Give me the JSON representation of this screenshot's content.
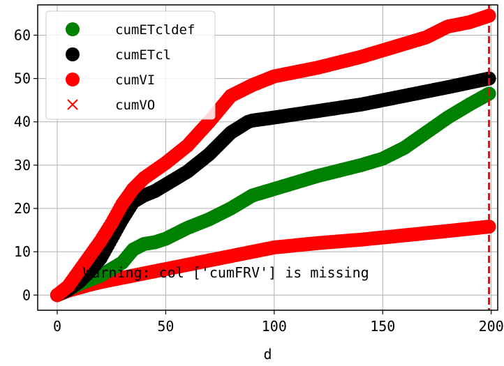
{
  "chart_data": {
    "type": "scatter",
    "xlabel": "d",
    "ylabel": "",
    "title": "",
    "xlim": [
      -9,
      203
    ],
    "ylim": [
      -3.5,
      67
    ],
    "xticks": [
      0,
      50,
      100,
      150,
      200
    ],
    "yticks": [
      0,
      10,
      20,
      30,
      40,
      50,
      60
    ],
    "grid": true,
    "legend_position": "top-left",
    "vline": {
      "x": 199,
      "color": "#ff0000",
      "style": "dashed"
    },
    "annotation": {
      "text": "Warning: col ['cumFRV'] is missing",
      "x": 12,
      "y": 5
    },
    "series": [
      {
        "name": "cumETcldef",
        "color": "#008000",
        "marker": "circle",
        "x": [
          0,
          5,
          10,
          15,
          20,
          25,
          30,
          35,
          40,
          45,
          50,
          60,
          70,
          80,
          90,
          100,
          120,
          140,
          150,
          160,
          170,
          180,
          190,
          199
        ],
        "y": [
          0,
          1.2,
          2.5,
          3.5,
          4.5,
          6,
          7.5,
          10.5,
          11.8,
          12.2,
          13,
          15.5,
          17.5,
          20,
          23,
          24.5,
          27.5,
          30,
          31.5,
          34,
          37.5,
          41,
          44,
          46.5
        ]
      },
      {
        "name": "cumETcl",
        "color": "#000000",
        "marker": "circle",
        "x": [
          0,
          5,
          10,
          15,
          20,
          25,
          30,
          35,
          40,
          45,
          50,
          60,
          70,
          80,
          88,
          90,
          100,
          120,
          140,
          160,
          180,
          199
        ],
        "y": [
          0,
          1.2,
          3,
          5.5,
          8.5,
          13,
          17.5,
          21.5,
          23,
          24,
          25.5,
          28.5,
          32.5,
          37.5,
          40,
          40.3,
          41,
          42.5,
          44,
          46,
          48,
          50
        ]
      },
      {
        "name": "cumVI",
        "color": "#ff0000",
        "marker": "circle",
        "x": [
          0,
          5,
          10,
          15,
          20,
          25,
          30,
          35,
          40,
          50,
          60,
          70,
          80,
          90,
          100,
          110,
          120,
          140,
          160,
          170,
          180,
          190,
          199
        ],
        "y": [
          0,
          2,
          5.5,
          9,
          12.5,
          16.5,
          21,
          24.5,
          27,
          30.5,
          34.5,
          40,
          46,
          48.5,
          50.5,
          51.5,
          52.5,
          55,
          58,
          59.5,
          62,
          63,
          64.5
        ]
      },
      {
        "name": "cumVO",
        "color": "#ff0000",
        "marker": "x",
        "x": [
          199
        ],
        "y": [
          16
        ]
      },
      {
        "name": "",
        "color": "#ff0000",
        "marker": "circle",
        "legend": false,
        "x": [
          0,
          5,
          10,
          15,
          20,
          30,
          40,
          50,
          60,
          70,
          80,
          90,
          100,
          110,
          120,
          140,
          160,
          180,
          199
        ],
        "y": [
          0,
          1,
          1.7,
          2.4,
          3,
          4,
          5,
          6,
          7,
          8,
          9,
          10,
          11,
          11.5,
          12,
          12.8,
          13.8,
          14.8,
          15.8
        ]
      }
    ]
  }
}
